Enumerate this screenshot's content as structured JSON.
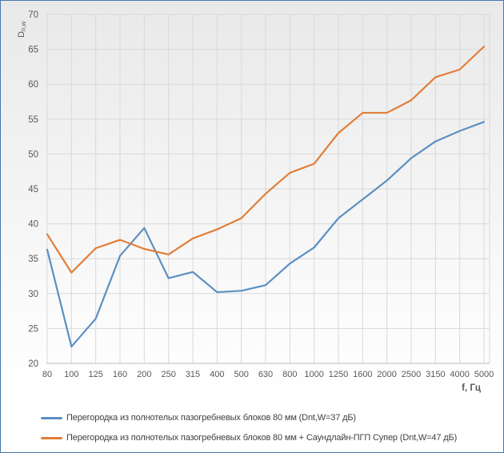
{
  "window": {
    "border_color": "#4878AA",
    "background_top": "#e9e9e9",
    "background_bottom": "#ffffff"
  },
  "chart_data": {
    "type": "line",
    "title": "",
    "xlabel": "f, Гц",
    "ylabel": "Dп,w",
    "ylabel_base": "D",
    "ylabel_subscript": "п,w",
    "ylim": [
      20,
      70
    ],
    "yticks": [
      20,
      25,
      30,
      35,
      40,
      45,
      50,
      55,
      60,
      65,
      70
    ],
    "grid": true,
    "gridline_color": "#d9d9d9",
    "axis_line_color": "#bdbdbd",
    "tick_label_color": "#595959",
    "legend_position": "bottom-left",
    "x_categories": [
      "80",
      "100",
      "125",
      "160",
      "200",
      "250",
      "315",
      "400",
      "500",
      "630",
      "800",
      "1000",
      "1250",
      "1600",
      "2000",
      "2500",
      "3150",
      "4000",
      "5000"
    ],
    "series": [
      {
        "name": "Перегородка из полнотелых пазогребневых блоков 80 мм (Dnt,W=37 дБ)",
        "color": "#5B90C2",
        "values": [
          36.3,
          22.4,
          26.4,
          35.4,
          39.4,
          32.2,
          33.1,
          30.2,
          30.4,
          31.2,
          34.3,
          36.6,
          40.8,
          43.5,
          46.2,
          49.4,
          51.8,
          53.3,
          54.6
        ]
      },
      {
        "name": "Перегородка из полнотелых пазогребневых блоков 80 мм + Саундлайн-ПГП Супер (Dnt,W=47 дБ)",
        "color": "#E07E39",
        "values": [
          38.5,
          33.0,
          36.5,
          37.7,
          36.4,
          35.6,
          37.9,
          39.2,
          40.8,
          44.3,
          47.3,
          48.6,
          53.0,
          55.9,
          55.9,
          57.7,
          61.0,
          62.1,
          65.4
        ]
      }
    ]
  }
}
